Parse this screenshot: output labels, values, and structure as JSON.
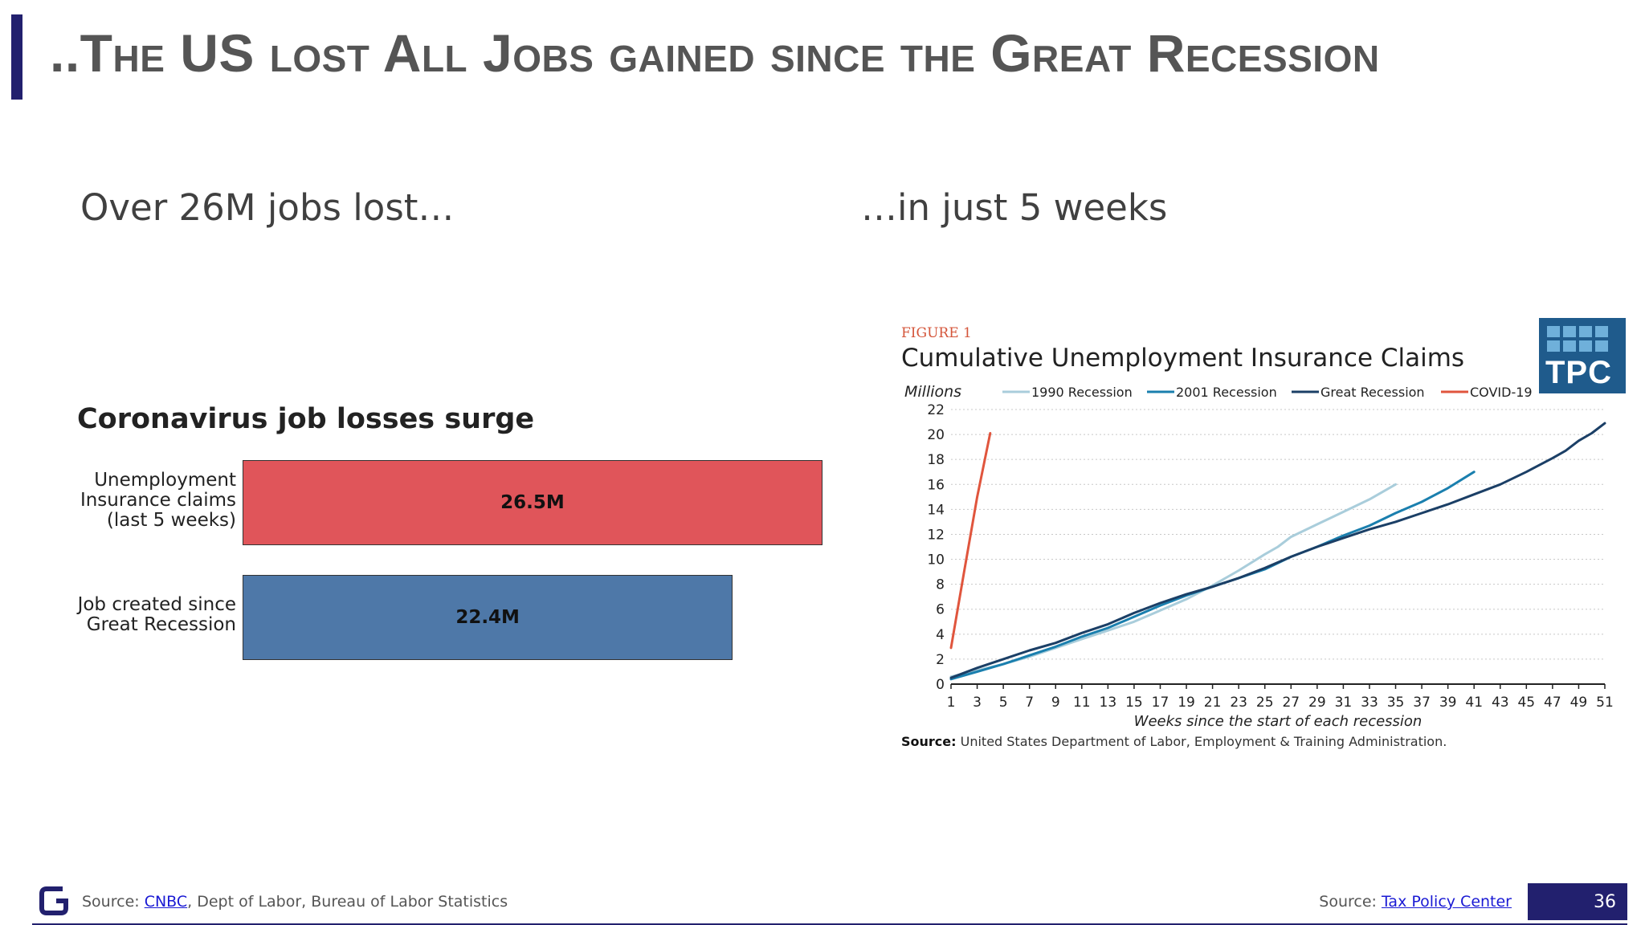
{
  "slide": {
    "title": "..The US lost All Jobs gained since the Great Recession",
    "subtitle_left": "Over 26M jobs lost…",
    "subtitle_right": "…in just 5 weeks",
    "page_number": "36",
    "accent_color": "#22206e"
  },
  "footer": {
    "left_prefix": "Source: ",
    "left_link": "CNBC",
    "left_suffix": ", Dept of Labor, Bureau of Labor Statistics",
    "right_prefix": "Source: ",
    "right_link": "Tax Policy Center",
    "logo_icon": "g-logo-icon"
  },
  "chart_data": [
    {
      "type": "bar",
      "orientation": "horizontal",
      "title": "Coronavirus job losses surge",
      "categories": [
        "Unemployment Insurance claims (last 5 weeks)",
        "Job created since Great Recession"
      ],
      "category_lines": [
        [
          "Unemployment",
          "Insurance claims",
          "(last 5 weeks)"
        ],
        [
          "Job created since",
          "Great Recession"
        ]
      ],
      "values": [
        26.5,
        22.4
      ],
      "value_labels": [
        "26.5M",
        "22.4M"
      ],
      "colors": [
        "#e0555a",
        "#4e78a8"
      ],
      "xlim": [
        0,
        26.5
      ]
    },
    {
      "type": "line",
      "figure_label": "FIGURE 1",
      "title": "Cumulative Unemployment Insurance Claims",
      "ylabel": "Millions",
      "xlabel": "Weeks since the start of each recession",
      "ylim": [
        0,
        22
      ],
      "yticks": [
        0,
        2,
        4,
        6,
        8,
        10,
        12,
        14,
        16,
        18,
        20,
        22
      ],
      "xlim": [
        1,
        51
      ],
      "xticks": [
        1,
        3,
        5,
        7,
        9,
        11,
        13,
        15,
        17,
        19,
        21,
        23,
        25,
        27,
        29,
        31,
        33,
        35,
        37,
        39,
        41,
        43,
        45,
        47,
        49,
        51
      ],
      "grid": true,
      "legend_position": "top",
      "source_bold": "Source:",
      "source_text": " United States Department of Labor, Employment & Training Administration.",
      "series": [
        {
          "name": "1990 Recession",
          "color": "#a9cddb",
          "x": [
            1,
            3,
            5,
            7,
            9,
            11,
            13,
            15,
            17,
            19,
            21,
            23,
            25,
            26,
            27,
            29,
            31,
            33,
            35
          ],
          "y": [
            0.6,
            1.1,
            1.6,
            2.2,
            2.9,
            3.6,
            4.3,
            5.0,
            5.9,
            6.8,
            7.9,
            9.1,
            10.4,
            11.0,
            11.8,
            12.8,
            13.8,
            14.8,
            16.0
          ]
        },
        {
          "name": "2001 Recession",
          "color": "#1a7fae",
          "x": [
            1,
            3,
            5,
            7,
            9,
            11,
            13,
            15,
            17,
            19,
            21,
            23,
            25,
            27,
            29,
            31,
            33,
            35,
            37,
            39,
            41
          ],
          "y": [
            0.4,
            1.0,
            1.6,
            2.3,
            3.0,
            3.8,
            4.5,
            5.4,
            6.3,
            7.1,
            7.8,
            8.5,
            9.2,
            10.2,
            11.0,
            11.9,
            12.7,
            13.7,
            14.6,
            15.7,
            17.0
          ]
        },
        {
          "name": "Great Recession",
          "color": "#1b3f66",
          "x": [
            1,
            3,
            5,
            7,
            9,
            11,
            13,
            15,
            17,
            19,
            21,
            23,
            25,
            27,
            29,
            31,
            33,
            35,
            37,
            39,
            41,
            43,
            45,
            47,
            48,
            49,
            50,
            51
          ],
          "y": [
            0.5,
            1.3,
            2.0,
            2.7,
            3.3,
            4.1,
            4.8,
            5.7,
            6.5,
            7.2,
            7.8,
            8.5,
            9.3,
            10.2,
            11.0,
            11.7,
            12.4,
            13.0,
            13.7,
            14.4,
            15.2,
            16.0,
            17.0,
            18.1,
            18.7,
            19.5,
            20.1,
            20.9
          ]
        },
        {
          "name": "COVID-19",
          "color": "#e0553d",
          "x": [
            1,
            2,
            3,
            4
          ],
          "y": [
            2.9,
            9.0,
            15.0,
            20.1
          ]
        }
      ]
    }
  ]
}
